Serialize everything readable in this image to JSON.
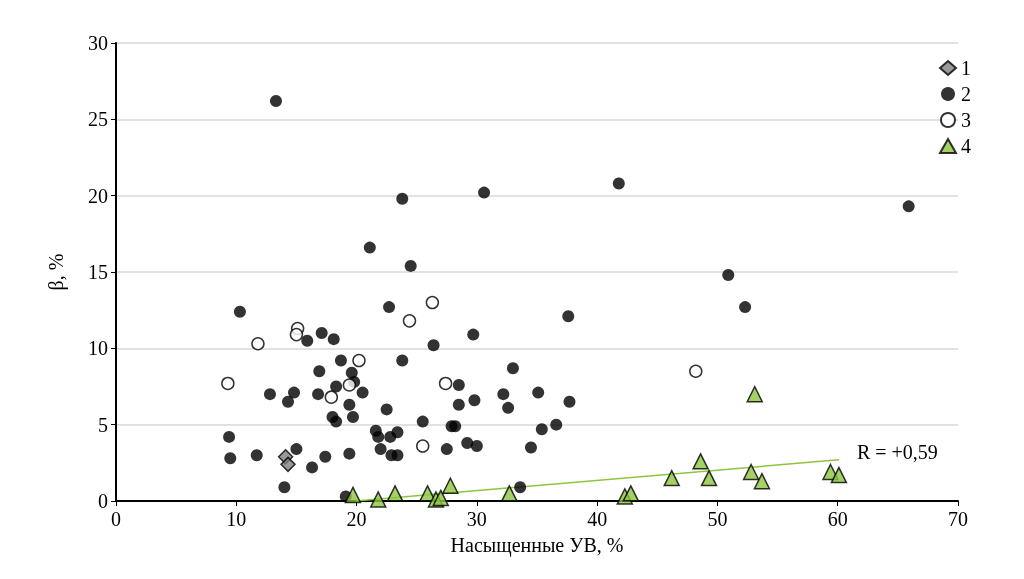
{
  "chart_data": {
    "type": "scatter",
    "xlabel": "Насыщенные УВ, %",
    "ylabel": "β, %",
    "xlim": [
      0,
      70
    ],
    "xticks": [
      0,
      10,
      20,
      30,
      40,
      50,
      60,
      70
    ],
    "ylim": [
      0,
      30
    ],
    "yticks": [
      0,
      5,
      10,
      15,
      20,
      25,
      30
    ],
    "grid": "y",
    "legend": "top right",
    "annotations": [
      "R = +0,59"
    ],
    "series": [
      {
        "name": "1",
        "color": "#808080",
        "marker": "diamond",
        "x": [
          14.1,
          14.3
        ],
        "values": [
          2.9,
          2.4
        ]
      },
      {
        "name": "2",
        "color": "#000000",
        "marker": "circle",
        "x": [
          13.3,
          10.3,
          17.1,
          18.1,
          15.9,
          18.7,
          16.9,
          18.3,
          12.8,
          14.8,
          14.3,
          16.8,
          18.0,
          18.3,
          9.4,
          9.5,
          11.7,
          15.0,
          16.3,
          17.4,
          14.0,
          19.4,
          19.1,
          22.7,
          29.7,
          26.4,
          37.6,
          23.8,
          33.0,
          19.6,
          20.5,
          19.8,
          28.5,
          29.8,
          32.2,
          32.6,
          35.1,
          37.7,
          19.4,
          19.7,
          22.5,
          25.5,
          28.5,
          27.9,
          28.2,
          35.4,
          36.6,
          21.6,
          21.8,
          22.8,
          23.4,
          22.0,
          22.9,
          23.4,
          27.5,
          29.2,
          30.0,
          34.5,
          33.6,
          23.8,
          30.6,
          21.1,
          24.5,
          41.8,
          65.9,
          50.9,
          52.3
        ],
        "values": [
          26.2,
          12.4,
          11.0,
          10.6,
          10.5,
          9.2,
          8.5,
          7.5,
          7.0,
          7.1,
          6.5,
          7.0,
          5.5,
          5.2,
          4.2,
          2.8,
          3.0,
          3.4,
          2.2,
          2.9,
          0.9,
          3.1,
          0.3,
          12.7,
          10.9,
          10.2,
          12.1,
          9.2,
          8.7,
          8.4,
          7.1,
          7.8,
          7.6,
          6.6,
          7.0,
          6.1,
          7.1,
          6.5,
          6.3,
          5.5,
          6.0,
          5.2,
          6.3,
          4.9,
          4.9,
          4.7,
          5.0,
          4.6,
          4.2,
          4.2,
          4.5,
          3.4,
          3.0,
          3.0,
          3.4,
          3.8,
          3.6,
          3.5,
          0.9,
          19.8,
          20.2,
          16.6,
          15.4,
          20.8,
          19.3,
          14.8,
          12.7
        ]
      },
      {
        "name": "3",
        "color": "#ffffff",
        "marker": "circle",
        "x": [
          15.1,
          15.0,
          11.8,
          9.3,
          17.9,
          26.3,
          24.4,
          20.2,
          19.4,
          27.4,
          25.5,
          48.2
        ],
        "values": [
          11.3,
          10.9,
          10.3,
          7.7,
          6.8,
          13.0,
          11.8,
          9.2,
          7.6,
          7.7,
          3.6,
          8.5
        ]
      },
      {
        "name": "4",
        "color": "#8cc63f",
        "marker": "triangle",
        "x": [
          19.7,
          21.8,
          23.2,
          25.9,
          26.6,
          27.0,
          27.8,
          32.7,
          53.1,
          48.6,
          46.2,
          49.3,
          52.8,
          53.7,
          59.4,
          60.1,
          42.3,
          42.8
        ],
        "values": [
          0.4,
          0.1,
          0.5,
          0.5,
          0.1,
          0.2,
          1.0,
          0.5,
          7.0,
          2.6,
          1.5,
          1.5,
          1.9,
          1.3,
          1.9,
          1.7,
          0.3,
          0.5
        ]
      },
      {
        "type": "line",
        "color": "#8cc63f",
        "marker": "none",
        "line_style": "solid",
        "x": [
          19.9,
          60.1
        ],
        "values": [
          0,
          2.7
        ]
      }
    ]
  }
}
